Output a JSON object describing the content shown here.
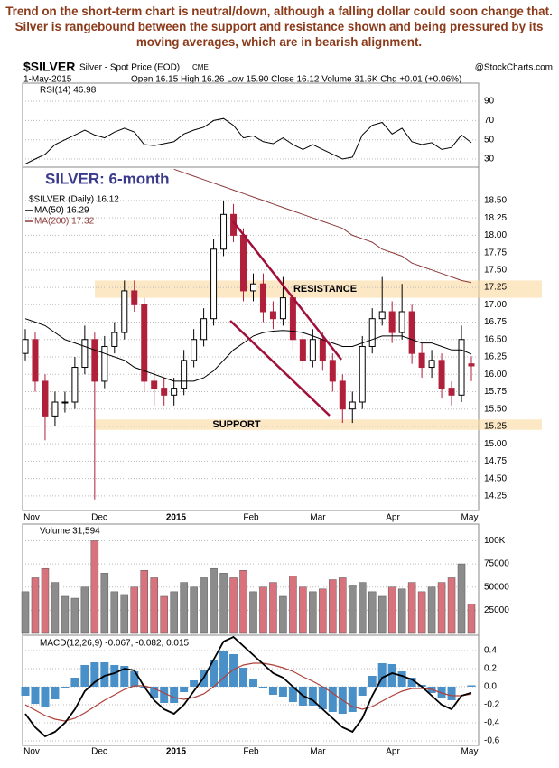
{
  "caption": "Trend on the short-term chart is neutral/down, although a falling dollar could soon change that. Silver is rangebound between the support and resistance shown and being pressured by its moving averages, which are in bearish alignment.",
  "header": {
    "symbol": "$SILVER",
    "name": "Silver - Spot Price (EOD)",
    "exchange": "CME",
    "date": "1-May-2015",
    "quote": "Open 16.15 High 16.26 Low 15.90 Close 16.12 Volume 31.6K Chg +0.01 (+0.06%)",
    "source": "@StockCharts.com"
  },
  "chart_data": [
    {
      "type": "line",
      "label": "RSI(14) 46.98",
      "color": "#000000",
      "values": [
        25,
        30,
        35,
        45,
        50,
        55,
        60,
        55,
        52,
        58,
        62,
        58,
        45,
        44,
        46,
        48,
        56,
        60,
        63,
        70,
        72,
        65,
        52,
        54,
        48,
        46,
        52,
        45,
        40,
        45,
        40,
        35,
        30,
        32,
        55,
        65,
        68,
        56,
        62,
        48,
        45,
        47,
        40,
        42,
        55,
        46.98
      ],
      "ylim": [
        21.6,
        108.8
      ],
      "yticks": [
        30,
        50,
        70,
        90
      ]
    },
    {
      "type": "candlestick",
      "title": "SILVER: 6-month",
      "ohlc_label": "$SILVER (Daily) 16.12",
      "up_color": "#000000",
      "down_color": "#b0203a",
      "x_labels": [
        "Nov",
        "Dec",
        "2015",
        "Feb",
        "Mar",
        "Apr",
        "May"
      ],
      "open": [
        16.3,
        16.5,
        15.9,
        15.4,
        15.6,
        15.6,
        16.1,
        16.5,
        15.9,
        16.4,
        16.6,
        17.2,
        17.0,
        15.9,
        15.8,
        15.7,
        15.8,
        16.2,
        16.5,
        16.8,
        17.8,
        18.3,
        18.0,
        17.2,
        17.3,
        16.9,
        16.8,
        17.1,
        16.5,
        16.2,
        16.5,
        16.2,
        15.9,
        15.5,
        15.6,
        16.4,
        16.8,
        16.9,
        16.6,
        16.9,
        16.3,
        16.1,
        16.2,
        15.8,
        15.7,
        16.15
      ],
      "high": [
        16.65,
        16.6,
        16.0,
        15.75,
        15.75,
        16.25,
        16.7,
        16.6,
        16.55,
        16.75,
        17.35,
        17.35,
        17.1,
        16.05,
        15.95,
        15.95,
        16.35,
        16.65,
        16.95,
        17.95,
        18.5,
        18.45,
        18.1,
        17.45,
        17.45,
        17.05,
        17.4,
        17.2,
        16.6,
        16.65,
        16.6,
        16.3,
        16.0,
        15.75,
        16.55,
        16.95,
        17.4,
        17.05,
        17.3,
        17.0,
        16.45,
        16.35,
        16.3,
        15.9,
        16.7,
        16.26
      ],
      "low": [
        16.2,
        15.75,
        15.05,
        15.25,
        15.45,
        15.5,
        16.0,
        14.2,
        15.8,
        16.3,
        16.5,
        16.9,
        15.75,
        15.55,
        15.55,
        15.55,
        15.7,
        16.1,
        16.4,
        16.7,
        17.7,
        17.9,
        17.05,
        17.05,
        16.75,
        16.65,
        16.7,
        16.35,
        16.05,
        16.1,
        16.05,
        15.75,
        15.3,
        15.3,
        15.5,
        16.3,
        16.7,
        16.45,
        16.5,
        16.15,
        15.95,
        15.95,
        15.65,
        15.55,
        15.6,
        15.9
      ],
      "close": [
        16.5,
        15.9,
        15.4,
        15.6,
        15.6,
        16.1,
        16.5,
        15.9,
        16.4,
        16.6,
        17.2,
        17.0,
        15.9,
        15.8,
        15.7,
        15.8,
        16.2,
        16.5,
        16.8,
        17.8,
        18.3,
        18.0,
        17.2,
        17.3,
        16.9,
        16.8,
        17.1,
        16.5,
        16.2,
        16.5,
        16.2,
        15.9,
        15.5,
        15.6,
        16.4,
        16.8,
        16.9,
        16.6,
        16.9,
        16.3,
        16.1,
        16.2,
        15.8,
        15.7,
        16.5,
        16.12
      ],
      "series": [
        {
          "name": "MA(50) 16.29",
          "color": "#000000",
          "values": [
            16.8,
            16.75,
            16.7,
            16.6,
            16.5,
            16.45,
            16.4,
            16.35,
            16.3,
            16.25,
            16.2,
            16.1,
            16.05,
            16.0,
            15.95,
            15.9,
            15.9,
            15.9,
            15.95,
            16.05,
            16.2,
            16.35,
            16.45,
            16.55,
            16.6,
            16.62,
            16.63,
            16.62,
            16.6,
            16.55,
            16.5,
            16.45,
            16.4,
            16.4,
            16.45,
            16.5,
            16.55,
            16.55,
            16.55,
            16.5,
            16.45,
            16.45,
            16.4,
            16.35,
            16.35,
            16.29
          ]
        },
        {
          "name": "MA(200) 17.32",
          "color": "#8b3a3a",
          "values": [
            null,
            null,
            null,
            null,
            null,
            null,
            null,
            null,
            null,
            null,
            null,
            null,
            null,
            null,
            null,
            18.95,
            18.9,
            18.85,
            18.8,
            18.75,
            18.7,
            18.65,
            18.6,
            18.55,
            18.5,
            18.45,
            18.4,
            18.35,
            18.3,
            18.25,
            18.2,
            18.15,
            18.1,
            18.0,
            17.95,
            17.9,
            17.8,
            17.75,
            17.7,
            17.6,
            17.55,
            17.5,
            17.45,
            17.4,
            17.35,
            17.32
          ]
        }
      ],
      "bands": [
        {
          "label": "RESISTANCE",
          "range": [
            17.1,
            17.35
          ]
        },
        {
          "label": "SUPPORT",
          "range": [
            15.2,
            15.35
          ]
        }
      ],
      "ylim": [
        14.04,
        18.98
      ],
      "yticks": [
        14.25,
        {
          "value": 14.5,
          "label": "14.50"
        },
        14.75,
        {
          "value": 15,
          "label": "15.00"
        },
        15.25,
        {
          "value": 15.5,
          "label": "15.50"
        },
        15.75,
        {
          "value": 16,
          "label": "16.00"
        },
        16.25,
        {
          "value": 16.5,
          "label": "16.50"
        },
        16.75,
        {
          "value": 17,
          "label": "17.00"
        },
        17.25,
        {
          "value": 17.5,
          "label": "17.50"
        },
        17.75,
        {
          "value": 18,
          "label": "18.00"
        },
        18.25,
        {
          "value": 18.5,
          "label": "18.50"
        }
      ]
    },
    {
      "type": "bar",
      "label": "Volume 31,594",
      "up_color": "#8c8c8c",
      "down_color": "#d8727c",
      "values": [
        45000,
        60000,
        70000,
        55000,
        40000,
        38000,
        50000,
        100000,
        65000,
        45000,
        42000,
        50000,
        68000,
        60000,
        40000,
        45000,
        55000,
        50000,
        60000,
        70000,
        65000,
        60000,
        68000,
        45000,
        50000,
        55000,
        40000,
        62000,
        50000,
        45000,
        48000,
        58000,
        60000,
        52000,
        55000,
        45000,
        40000,
        50000,
        48000,
        55000,
        45000,
        50000,
        55000,
        60000,
        75000,
        31594
      ],
      "ylim": [
        0,
        118000
      ],
      "yticks": [
        25000,
        50000,
        75000,
        {
          "value": 100000,
          "label": "100K"
        }
      ]
    },
    {
      "type": "macd",
      "label": "MACD(12,26,9) -0.067, -0.082, 0.015",
      "macd_color": "#000000",
      "signal_color": "#b0403a",
      "histogram_color": "#4a90c8",
      "macd": [
        -0.3,
        -0.45,
        -0.55,
        -0.5,
        -0.4,
        -0.25,
        -0.05,
        0.05,
        0.12,
        0.15,
        0.2,
        0.18,
        0.0,
        -0.15,
        -0.25,
        -0.3,
        -0.2,
        -0.05,
        0.1,
        0.3,
        0.5,
        0.55,
        0.45,
        0.35,
        0.25,
        0.15,
        0.1,
        0.0,
        -0.1,
        -0.15,
        -0.25,
        -0.35,
        -0.45,
        -0.5,
        -0.35,
        -0.1,
        0.1,
        0.15,
        0.12,
        0.08,
        0.0,
        -0.1,
        -0.2,
        -0.25,
        -0.1,
        -0.067
      ],
      "signal": [
        -0.2,
        -0.26,
        -0.32,
        -0.36,
        -0.38,
        -0.35,
        -0.29,
        -0.22,
        -0.15,
        -0.09,
        -0.03,
        0.01,
        0.01,
        -0.02,
        -0.07,
        -0.12,
        -0.14,
        -0.12,
        -0.08,
        0.0,
        0.1,
        0.19,
        0.24,
        0.26,
        0.26,
        0.24,
        0.21,
        0.17,
        0.11,
        0.06,
        0.0,
        -0.07,
        -0.15,
        -0.22,
        -0.25,
        -0.22,
        -0.16,
        -0.1,
        -0.05,
        -0.02,
        -0.02,
        -0.03,
        -0.07,
        -0.1,
        -0.1,
        -0.082
      ],
      "histogram": [
        -0.1,
        -0.19,
        -0.23,
        -0.14,
        -0.02,
        0.1,
        0.24,
        0.27,
        0.27,
        0.24,
        0.23,
        0.17,
        -0.01,
        -0.13,
        -0.18,
        -0.18,
        -0.06,
        0.07,
        0.18,
        0.3,
        0.4,
        0.36,
        0.21,
        0.09,
        -0.01,
        -0.09,
        -0.11,
        -0.17,
        -0.21,
        -0.21,
        -0.25,
        -0.28,
        -0.3,
        -0.28,
        -0.1,
        0.12,
        0.26,
        0.25,
        0.17,
        0.1,
        0.02,
        -0.07,
        -0.13,
        -0.15,
        0.0,
        0.015
      ],
      "ylim": [
        -0.65,
        0.57
      ],
      "yticks": [
        0.4,
        0.2,
        {
          "value": 0,
          "label": "0.0"
        },
        -0.2,
        -0.4,
        -0.6
      ]
    }
  ]
}
